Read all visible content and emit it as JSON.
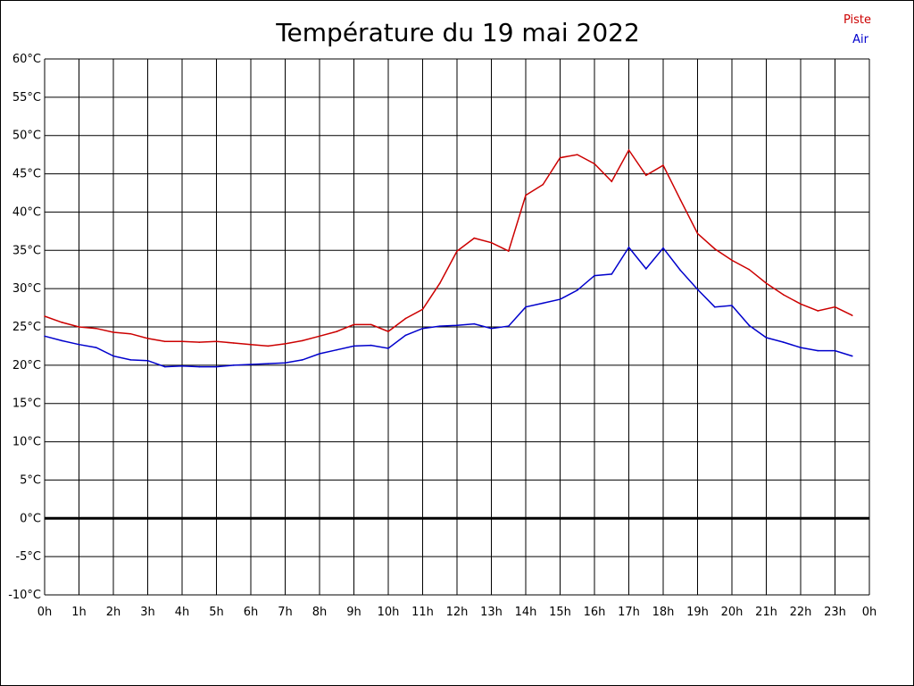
{
  "chart_data": {
    "type": "line",
    "title": "Température du 19 mai 2022",
    "xlabel": "",
    "ylabel": "",
    "xlim": [
      0,
      24
    ],
    "ylim": [
      -10,
      60
    ],
    "grid": true,
    "legend_position": "top-right",
    "x_ticks": [
      "0h",
      "1h",
      "2h",
      "3h",
      "4h",
      "5h",
      "6h",
      "7h",
      "8h",
      "9h",
      "10h",
      "11h",
      "12h",
      "13h",
      "14h",
      "15h",
      "16h",
      "17h",
      "18h",
      "19h",
      "20h",
      "21h",
      "22h",
      "23h",
      "0h"
    ],
    "y_ticks": [
      "60°C",
      "55°C",
      "50°C",
      "45°C",
      "40°C",
      "35°C",
      "30°C",
      "25°C",
      "20°C",
      "15°C",
      "10°C",
      "5°C",
      "0°C",
      "-5°C",
      "-10°C"
    ],
    "y_tick_values": [
      60,
      55,
      50,
      45,
      40,
      35,
      30,
      25,
      20,
      15,
      10,
      5,
      0,
      -5,
      -10
    ],
    "x": [
      0,
      0.5,
      1,
      1.5,
      2,
      2.5,
      3,
      3.5,
      4,
      4.5,
      5,
      5.5,
      6,
      6.5,
      7,
      7.5,
      8,
      8.5,
      9,
      9.5,
      10,
      10.5,
      11,
      11.5,
      12,
      12.5,
      13,
      13.5,
      14,
      14.5,
      15,
      15.5,
      16,
      16.5,
      17,
      17.5,
      18,
      18.5,
      19,
      19.5,
      20,
      20.5,
      21,
      21.5,
      22,
      22.5,
      23,
      23.5
    ],
    "series": [
      {
        "name": "Piste",
        "color": "#cc0000",
        "values": [
          26.4,
          25.6,
          25.0,
          24.8,
          24.3,
          24.1,
          23.5,
          23.1,
          23.1,
          23.0,
          23.1,
          22.9,
          22.7,
          22.5,
          22.8,
          23.2,
          23.8,
          24.4,
          25.3,
          25.3,
          24.4,
          26.1,
          27.3,
          30.7,
          34.9,
          36.6,
          36.0,
          34.9,
          42.2,
          43.6,
          47.1,
          47.5,
          46.3,
          44.0,
          48.1,
          44.8,
          46.1,
          41.6,
          37.2,
          35.2,
          33.7,
          32.5,
          30.7,
          29.2,
          28.0,
          27.1,
          27.6,
          26.5
        ]
      },
      {
        "name": "Air",
        "color": "#0000cc",
        "values": [
          23.8,
          23.2,
          22.7,
          22.3,
          21.2,
          20.7,
          20.6,
          19.8,
          19.9,
          19.8,
          19.8,
          20.0,
          20.1,
          20.2,
          20.3,
          20.7,
          21.5,
          22.0,
          22.5,
          22.6,
          22.2,
          23.9,
          24.8,
          25.1,
          25.2,
          25.4,
          24.8,
          25.1,
          27.6,
          28.1,
          28.6,
          29.8,
          31.7,
          31.9,
          35.4,
          32.6,
          35.3,
          32.4,
          29.9,
          27.6,
          27.8,
          25.2,
          23.6,
          23.0,
          22.3,
          21.9,
          21.9,
          21.2
        ]
      }
    ]
  }
}
